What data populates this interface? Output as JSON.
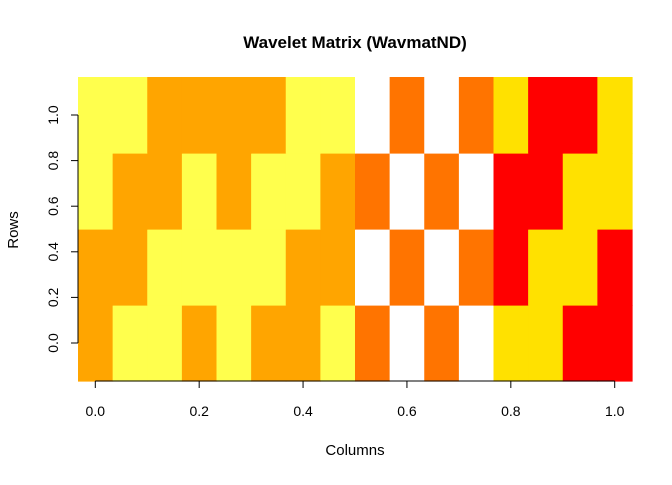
{
  "chart_data": {
    "type": "heatmap",
    "title": "Wavelet Matrix (WavmatND)",
    "xlabel": "Columns",
    "ylabel": "Rows",
    "x_ticks": [
      "0.0",
      "0.2",
      "0.4",
      "0.6",
      "0.8",
      "1.0"
    ],
    "y_ticks": [
      "0.0",
      "0.2",
      "0.4",
      "0.6",
      "0.8",
      "1.0"
    ],
    "x_tick_values": [
      0.0,
      0.2,
      0.4,
      0.6,
      0.8,
      1.0
    ],
    "y_tick_values": [
      0.0,
      0.2,
      0.4,
      0.6,
      0.8,
      1.0
    ],
    "n_columns": 16,
    "n_rows": 4,
    "x_range": [
      -0.0333,
      1.0333
    ],
    "y_range": [
      -0.1667,
      1.1667
    ],
    "grid": false,
    "palette": [
      "#FF0000",
      "#FF7400",
      "#FFA500",
      "#FFE100",
      "#FFFF4D",
      "#FFFFFF"
    ],
    "values": [
      [
        2,
        4,
        4,
        2,
        4,
        2,
        2,
        4,
        1,
        5,
        1,
        5,
        3,
        3,
        0,
        0
      ],
      [
        2,
        2,
        4,
        4,
        4,
        4,
        2,
        2,
        5,
        1,
        5,
        1,
        0,
        3,
        3,
        0
      ],
      [
        4,
        2,
        2,
        4,
        2,
        4,
        4,
        2,
        1,
        5,
        1,
        5,
        0,
        0,
        3,
        3
      ],
      [
        4,
        4,
        2,
        2,
        2,
        2,
        4,
        4,
        5,
        1,
        5,
        1,
        3,
        0,
        0,
        3
      ]
    ]
  }
}
